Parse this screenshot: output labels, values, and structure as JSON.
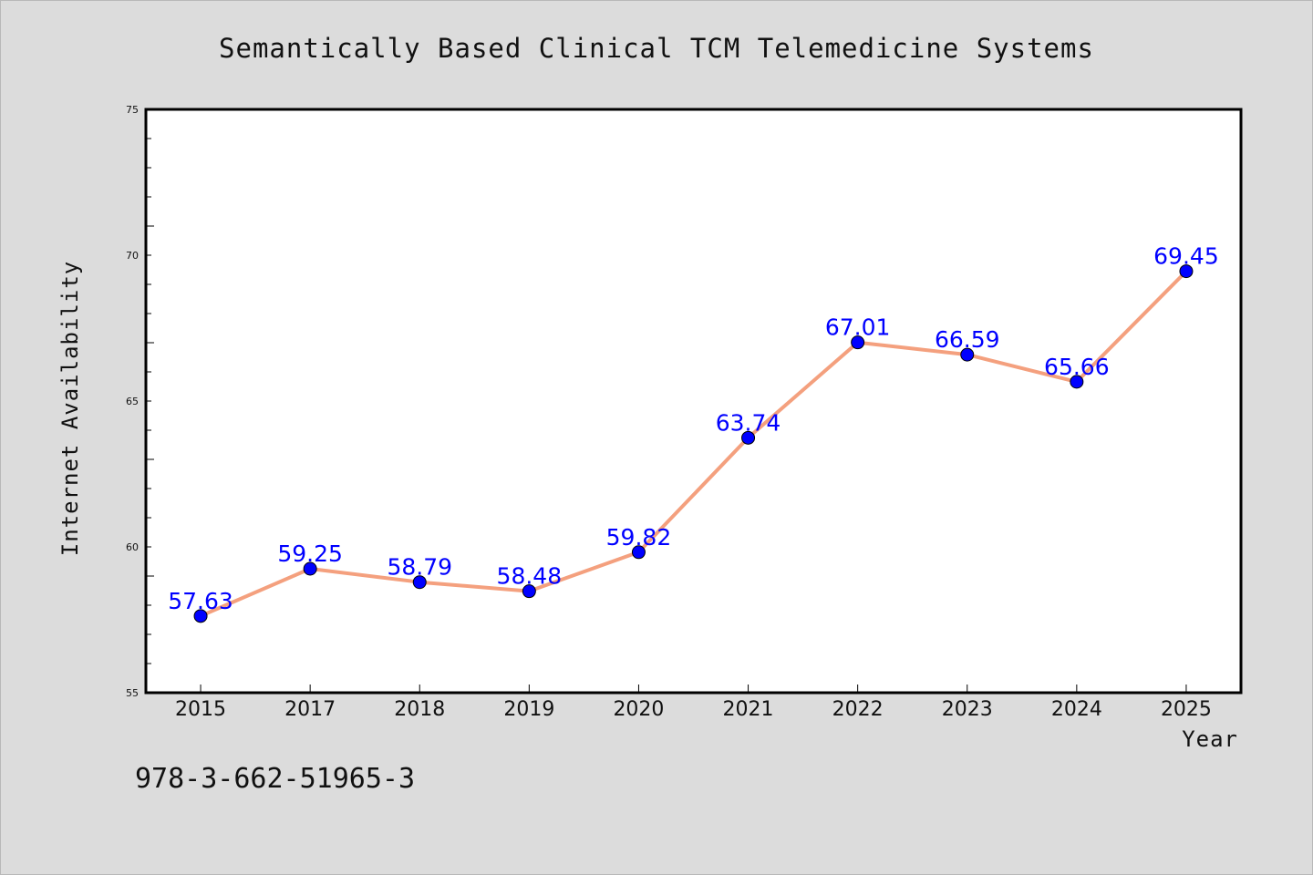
{
  "chart_data": {
    "type": "line",
    "title": "Semantically Based Clinical TCM Telemedicine Systems",
    "xlabel": "Year",
    "ylabel": "Internet Availability",
    "x": [
      "2015",
      "2017",
      "2018",
      "2019",
      "2020",
      "2021",
      "2022",
      "2023",
      "2024",
      "2025"
    ],
    "series": [
      {
        "values": [
          57.63,
          59.25,
          58.79,
          58.48,
          59.82,
          63.74,
          67.01,
          66.59,
          65.66,
          69.45
        ],
        "data_labels": [
          "57.63",
          "59.25",
          "58.79",
          "58.48",
          "59.82",
          "63.74",
          "67.01",
          "66.59",
          "65.66",
          "69.45"
        ]
      }
    ],
    "ylim": [
      55,
      75
    ],
    "yticks": [
      "55",
      "60",
      "65",
      "70",
      "75"
    ],
    "grid": false,
    "line_color": "#f4a07e",
    "marker_color": "#0000ff",
    "label_color": "#0000ff"
  },
  "footnote": "978-3-662-51965-3"
}
